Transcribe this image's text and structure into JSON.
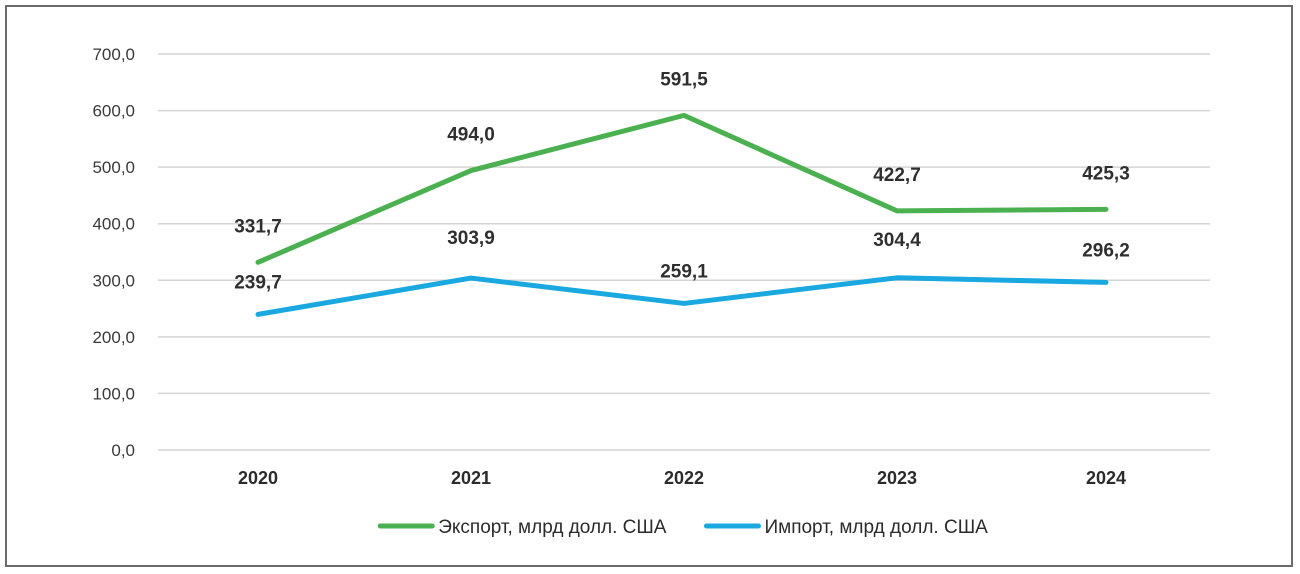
{
  "chart_data": {
    "type": "line",
    "title": "",
    "xlabel": "",
    "ylabel": "",
    "categories": [
      "2020",
      "2021",
      "2022",
      "2023",
      "2024"
    ],
    "ylim": [
      0,
      700
    ],
    "yticks": [
      0,
      100,
      200,
      300,
      400,
      500,
      600,
      700
    ],
    "ytick_labels": [
      "0,0",
      "100,0",
      "200,0",
      "300,0",
      "400,0",
      "500,0",
      "600,0",
      "700,0"
    ],
    "grid": true,
    "legend_position": "bottom-center",
    "series": [
      {
        "name": "Экспорт, млрд долл. США",
        "color": "#4bb04f",
        "values": [
          331.7,
          494.0,
          591.5,
          422.7,
          425.3
        ],
        "labels": [
          "331,7",
          "494,0",
          "591,5",
          "422,7",
          "425,3"
        ]
      },
      {
        "name": "Импорт, млрд долл. США",
        "color": "#1aa8e0",
        "values": [
          239.7,
          303.9,
          259.1,
          304.4,
          296.2
        ],
        "labels": [
          "239,7",
          "303,9",
          "259,1",
          "304,4",
          "296,2"
        ]
      }
    ]
  }
}
